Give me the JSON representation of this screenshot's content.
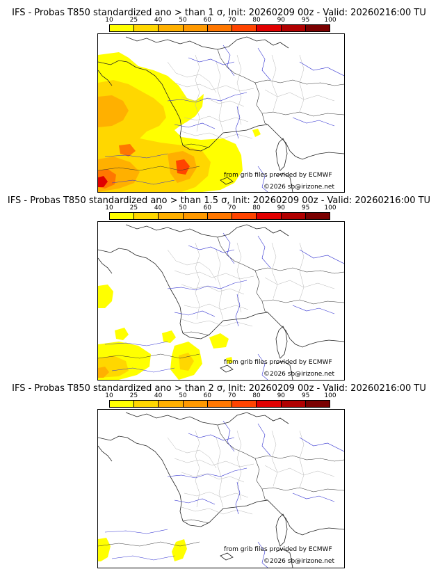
{
  "colorbar": {
    "ticks": [
      "10",
      "25",
      "40",
      "50",
      "60",
      "70",
      "80",
      "90",
      "95",
      "100"
    ],
    "colors": [
      "#ffff00",
      "#ffd700",
      "#ffb000",
      "#ff9900",
      "#ff7700",
      "#ff4400",
      "#e00000",
      "#b00000",
      "#7a0000"
    ]
  },
  "panels": [
    {
      "title": "IFS - Probas T850  standardized ano > than 1 σ, Init: 20260209 00z - Valid: 20260216:00 TU",
      "credit": "from grib files provided by ECMWF",
      "copyright": "©2026 sb@irizone.net"
    },
    {
      "title": "IFS - Probas T850  standardized ano > than 1.5 σ, Init: 20260209 00z - Valid: 20260216:00 TU",
      "credit": "from grib files provided by ECMWF",
      "copyright": "©2026 sb@irizone.net"
    },
    {
      "title": "IFS - Probas T850  standardized ano > than 2 σ, Init: 20260209 00z - Valid: 20260216:00 TU",
      "credit": "from grib files provided by ECMWF",
      "copyright": "©2026 sb@irizone.net"
    }
  ]
}
